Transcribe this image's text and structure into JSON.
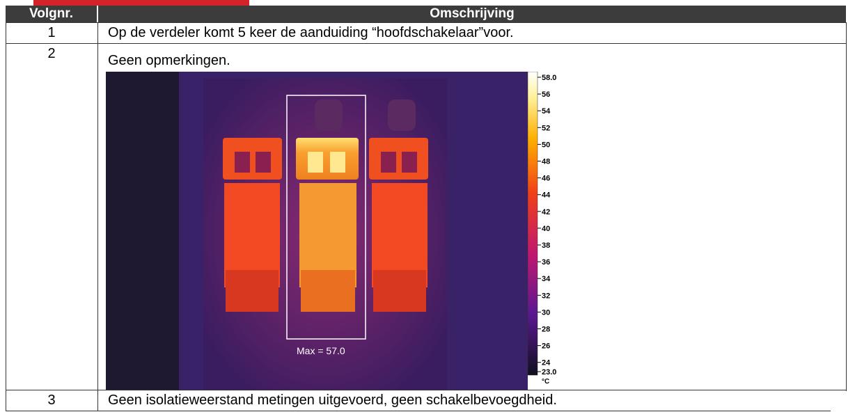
{
  "header": {
    "columns": [
      "Volgnr.",
      "Omschrijving"
    ]
  },
  "table": {
    "rows": [
      [
        "1",
        "Op de verdeler komt 5 keer de aanduiding “hoofdschakelaar”voor."
      ],
      [
        "2",
        "Geen opmerkingen."
      ],
      [
        "3",
        "Geen isolatieweerstand metingen uitgevoerd, geen schakelbevoegdheid."
      ]
    ]
  },
  "thermal_image": {
    "annotation": "Max = 57.0",
    "scale_labels": [
      "58.0",
      "56",
      "54",
      "52",
      "50",
      "48",
      "46",
      "44",
      "42",
      "40",
      "38",
      "36",
      "34",
      "32",
      "30",
      "28",
      "26",
      "24",
      "23.0"
    ],
    "unit": "°C"
  }
}
